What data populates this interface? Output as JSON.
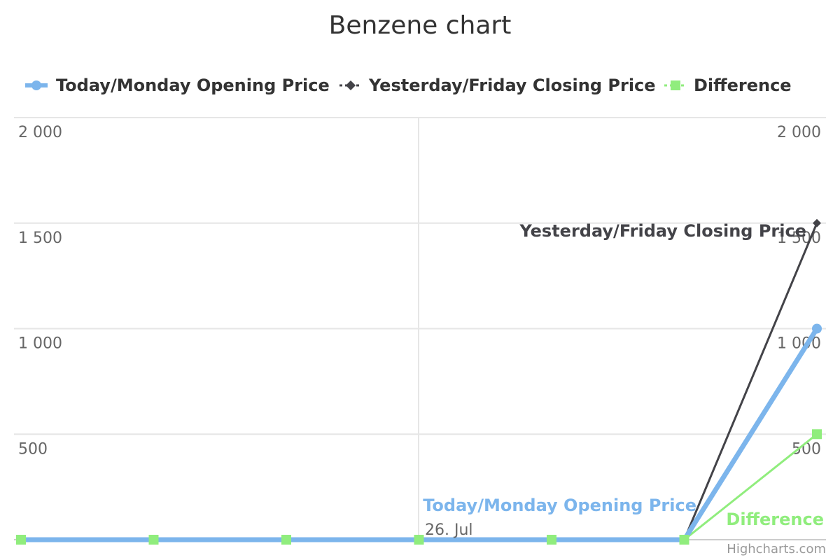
{
  "chart_data": {
    "type": "line",
    "title": "Benzene chart",
    "x_ticks": [
      "26. Jul"
    ],
    "y_axis_left": {
      "ticks": [
        "500",
        "1 000",
        "1 500",
        "2 000"
      ],
      "range": [
        0,
        2000
      ]
    },
    "y_axis_right": {
      "ticks": [
        "500",
        "1 000",
        "1 500",
        "2 000"
      ],
      "range": [
        0,
        2000
      ]
    },
    "grid": true,
    "legend_position": "top",
    "series": [
      {
        "name": "Today/Monday Opening Price",
        "color": "#7cb5ec",
        "marker": "circle",
        "values": [
          0,
          0,
          0,
          0,
          0,
          0,
          1000
        ]
      },
      {
        "name": "Yesterday/Friday Closing Price",
        "color": "#434348",
        "marker": "diamond",
        "values": [
          0,
          0,
          0,
          0,
          0,
          0,
          1500
        ]
      },
      {
        "name": "Difference",
        "color": "#90ed7d",
        "marker": "square",
        "values": [
          0,
          0,
          0,
          0,
          0,
          0,
          500
        ]
      }
    ]
  },
  "credits": "Highcharts.com"
}
